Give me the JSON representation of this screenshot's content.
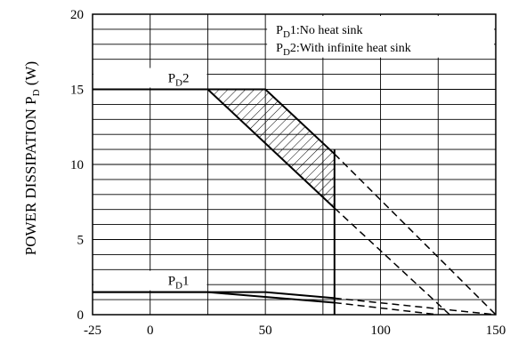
{
  "chart_data": {
    "type": "line",
    "ylabel": "POWER DISSIPATION P",
    "ylabel_subscript": "D",
    "ylabel_unit": " (W)",
    "xlim": [
      -25,
      150
    ],
    "ylim": [
      0,
      20
    ],
    "x_ticks": [
      -25,
      0,
      50,
      100,
      150
    ],
    "y_ticks": [
      0,
      5,
      10,
      15,
      20
    ],
    "legend": [
      {
        "prefix": "P",
        "sub": "D",
        "text": "1:No heat sink"
      },
      {
        "prefix": "P",
        "sub": "D",
        "text": "2:With infinite heat sink"
      }
    ],
    "series_labels": [
      {
        "prefix": "P",
        "sub": "D",
        "suffix": "2"
      },
      {
        "prefix": "P",
        "sub": "D",
        "suffix": "1"
      }
    ],
    "series": [
      {
        "solid": [
          [
            -25,
            15
          ],
          [
            25,
            15
          ],
          [
            80,
            7.1
          ]
        ],
        "dashed": [
          [
            80,
            7.1
          ],
          [
            130,
            0
          ]
        ]
      },
      {
        "solid": [
          [
            -25,
            15
          ],
          [
            50,
            15
          ],
          [
            80,
            10.7
          ]
        ],
        "dashed": [
          [
            80,
            10.7
          ],
          [
            150,
            0
          ]
        ]
      },
      {
        "solid": [
          [
            -25,
            1.5
          ],
          [
            50,
            1.5
          ],
          [
            80,
            1.1
          ]
        ],
        "dashed": [
          [
            80,
            1.1
          ],
          [
            150,
            0
          ]
        ]
      },
      {
        "solid": [
          [
            -25,
            1.5
          ],
          [
            25,
            1.5
          ],
          [
            80,
            0.8
          ]
        ],
        "dashed": [
          [
            80,
            0.8
          ],
          [
            125,
            0
          ]
        ]
      }
    ],
    "vertical_line": {
      "x": 80,
      "y": [
        0,
        11
      ]
    },
    "hatched_region": [
      [
        25,
        15
      ],
      [
        50,
        15
      ],
      [
        80,
        10.7
      ],
      [
        80,
        7.1
      ]
    ]
  }
}
